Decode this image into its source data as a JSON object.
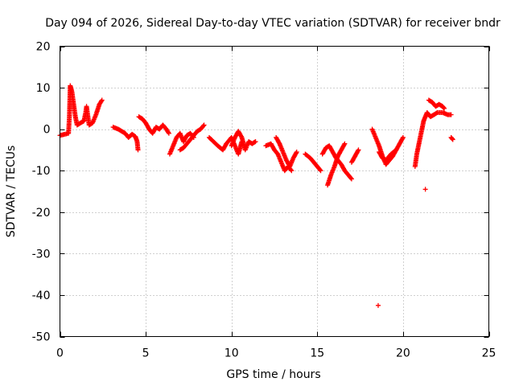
{
  "chart_data": {
    "type": "scatter",
    "title": "Day 094 of 2026, Sidereal Day-to-day VTEC variation (SDTVAR) for receiver bndr",
    "xlabel": "GPS time / hours",
    "ylabel": "SDTVAR / TECUs",
    "xlim": [
      0,
      25
    ],
    "ylim": [
      -50,
      20
    ],
    "xticks": [
      "0",
      "5",
      "10",
      "15",
      "20",
      "25"
    ],
    "yticks": [
      "20",
      "10",
      "0",
      "-10",
      "-20",
      "-30",
      "-40",
      "-50"
    ],
    "grid": true,
    "marker": "plus",
    "color": "#ff0000",
    "series": [
      {
        "name": "SDTVAR",
        "segments": [
          [
            [
              0.0,
              -1.5
            ],
            [
              0.3,
              -1.2
            ],
            [
              0.5,
              -1.0
            ],
            [
              0.55,
              3.0
            ],
            [
              0.6,
              10.5
            ],
            [
              0.7,
              9.0
            ],
            [
              0.8,
              6.0
            ],
            [
              0.9,
              3.0
            ],
            [
              1.0,
              1.0
            ],
            [
              1.2,
              1.5
            ],
            [
              1.4,
              2.0
            ],
            [
              1.5,
              4.0
            ],
            [
              1.55,
              5.5
            ],
            [
              1.7,
              1.0
            ],
            [
              1.9,
              1.5
            ],
            [
              2.1,
              3.5
            ],
            [
              2.3,
              6.0
            ],
            [
              2.45,
              7.0
            ]
          ],
          [
            [
              3.1,
              0.5
            ],
            [
              3.4,
              0.0
            ],
            [
              3.6,
              -0.5
            ],
            [
              3.8,
              -1.0
            ],
            [
              3.9,
              -1.5
            ],
            [
              4.0,
              -2.0
            ],
            [
              4.2,
              -1.2
            ],
            [
              4.4,
              -1.8
            ],
            [
              4.5,
              -3.0
            ],
            [
              4.55,
              -5.0
            ]
          ],
          [
            [
              4.6,
              3.0
            ],
            [
              4.8,
              2.5
            ],
            [
              5.0,
              1.5
            ],
            [
              5.2,
              0.0
            ],
            [
              5.4,
              -1.0
            ],
            [
              5.6,
              0.5
            ],
            [
              5.8,
              0.0
            ],
            [
              6.0,
              1.0
            ],
            [
              6.2,
              0.0
            ],
            [
              6.35,
              -1.0
            ]
          ],
          [
            [
              6.4,
              -6.0
            ],
            [
              6.6,
              -4.0
            ],
            [
              6.8,
              -2.0
            ],
            [
              7.0,
              -1.0
            ],
            [
              7.2,
              -3.0
            ],
            [
              7.4,
              -1.5
            ],
            [
              7.6,
              -1.0
            ],
            [
              7.8,
              -2.0
            ]
          ],
          [
            [
              7.0,
              -5.0
            ],
            [
              7.2,
              -4.5
            ],
            [
              7.5,
              -3.0
            ],
            [
              7.8,
              -1.5
            ],
            [
              8.0,
              -0.5
            ],
            [
              8.2,
              0.0
            ],
            [
              8.4,
              1.0
            ]
          ],
          [
            [
              8.7,
              -2.0
            ],
            [
              9.2,
              -4.0
            ],
            [
              9.5,
              -5.0
            ],
            [
              9.7,
              -3.5
            ],
            [
              10.0,
              -2.0
            ],
            [
              10.2,
              -4.0
            ],
            [
              10.4,
              -6.0
            ],
            [
              10.6,
              -3.0
            ]
          ],
          [
            [
              10.0,
              -4.0
            ],
            [
              10.2,
              -2.0
            ],
            [
              10.4,
              -0.5
            ],
            [
              10.6,
              -2.0
            ],
            [
              10.8,
              -5.0
            ],
            [
              11.0,
              -3.0
            ],
            [
              11.2,
              -3.5
            ],
            [
              11.4,
              -3.0
            ]
          ],
          [
            [
              12.0,
              -4.0
            ],
            [
              12.3,
              -3.5
            ],
            [
              12.5,
              -5.0
            ],
            [
              12.7,
              -6.0
            ],
            [
              12.9,
              -8.0
            ],
            [
              13.1,
              -10.0
            ],
            [
              13.3,
              -9.0
            ],
            [
              13.5,
              -10.0
            ]
          ],
          [
            [
              12.6,
              -2.0
            ],
            [
              12.8,
              -3.5
            ],
            [
              13.0,
              -5.5
            ],
            [
              13.2,
              -7.5
            ],
            [
              13.4,
              -9.0
            ],
            [
              13.6,
              -7.0
            ],
            [
              13.8,
              -5.5
            ]
          ],
          [
            [
              14.3,
              -6.0
            ],
            [
              14.6,
              -7.0
            ],
            [
              14.8,
              -8.0
            ],
            [
              15.0,
              -9.0
            ],
            [
              15.2,
              -10.0
            ]
          ],
          [
            [
              15.3,
              -6.0
            ],
            [
              15.5,
              -4.5
            ],
            [
              15.7,
              -4.0
            ],
            [
              15.9,
              -5.5
            ],
            [
              16.1,
              -7.0
            ],
            [
              16.4,
              -8.5
            ],
            [
              16.6,
              -10.0
            ],
            [
              16.8,
              -11.0
            ],
            [
              17.0,
              -12.0
            ]
          ],
          [
            [
              15.6,
              -13.5
            ],
            [
              15.8,
              -11.0
            ],
            [
              16.0,
              -9.0
            ],
            [
              16.2,
              -6.5
            ],
            [
              16.4,
              -5.0
            ],
            [
              16.6,
              -3.5
            ]
          ],
          [
            [
              17.0,
              -8.0
            ],
            [
              17.2,
              -6.5
            ],
            [
              17.4,
              -5.0
            ]
          ],
          [
            [
              18.2,
              0.0
            ],
            [
              18.4,
              -2.0
            ],
            [
              18.6,
              -4.0
            ],
            [
              18.8,
              -6.5
            ],
            [
              19.0,
              -8.5
            ],
            [
              19.2,
              -7.5
            ],
            [
              19.4,
              -6.5
            ],
            [
              19.6,
              -5.0
            ],
            [
              19.8,
              -3.5
            ],
            [
              20.0,
              -2.0
            ]
          ],
          [
            [
              18.6,
              -5.5
            ],
            [
              18.8,
              -7.0
            ],
            [
              19.0,
              -7.5
            ],
            [
              19.3,
              -6.0
            ],
            [
              19.6,
              -5.0
            ]
          ],
          [
            [
              18.55,
              -42.5
            ]
          ],
          [
            [
              20.7,
              -9.0
            ],
            [
              20.8,
              -6.0
            ],
            [
              20.9,
              -4.0
            ],
            [
              21.0,
              -2.0
            ],
            [
              21.1,
              0.0
            ],
            [
              21.2,
              2.0
            ],
            [
              21.3,
              3.0
            ],
            [
              21.4,
              4.0
            ],
            [
              21.5,
              3.5
            ],
            [
              21.6,
              3.0
            ],
            [
              21.8,
              3.5
            ],
            [
              22.0,
              4.0
            ],
            [
              22.3,
              4.0
            ],
            [
              22.6,
              3.5
            ],
            [
              22.8,
              3.5
            ]
          ],
          [
            [
              21.3,
              -14.5
            ]
          ],
          [
            [
              21.5,
              7.0
            ],
            [
              21.7,
              6.5
            ],
            [
              21.9,
              5.5
            ],
            [
              22.1,
              6.0
            ],
            [
              22.3,
              5.5
            ],
            [
              22.4,
              5.0
            ]
          ],
          [
            [
              22.8,
              -2.0
            ],
            [
              22.9,
              -2.5
            ]
          ]
        ]
      }
    ]
  }
}
